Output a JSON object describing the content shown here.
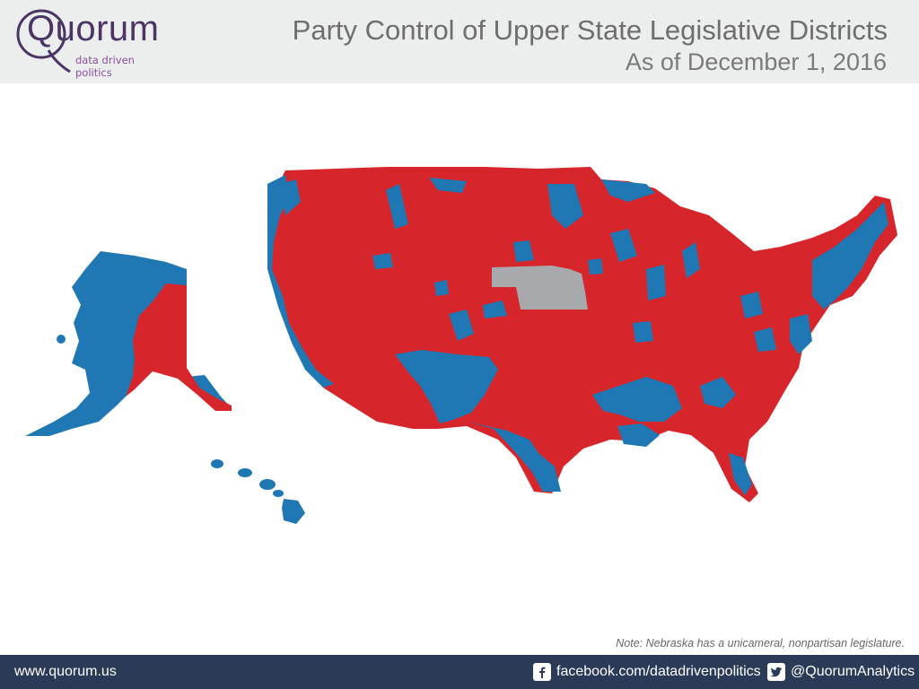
{
  "logo": {
    "name": "Quorum",
    "tagline": "data driven politics"
  },
  "title": "Party Control of Upper State Legislative Districts",
  "subtitle": "As of December 1, 2016",
  "map": {
    "colors": {
      "republican": "#d7262b",
      "democrat": "#1f77b4",
      "nonpartisan": "#a7a9ac"
    }
  },
  "note": "Note: Nebraska has a unicameral, nonpartisan legislature.",
  "footer": {
    "website": "www.quorum.us",
    "facebook": "facebook.com/datadrivenpolitics",
    "twitter": "@QuorumAnalytics",
    "facebook_icon": "facebook-icon",
    "twitter_icon": "twitter-icon"
  }
}
